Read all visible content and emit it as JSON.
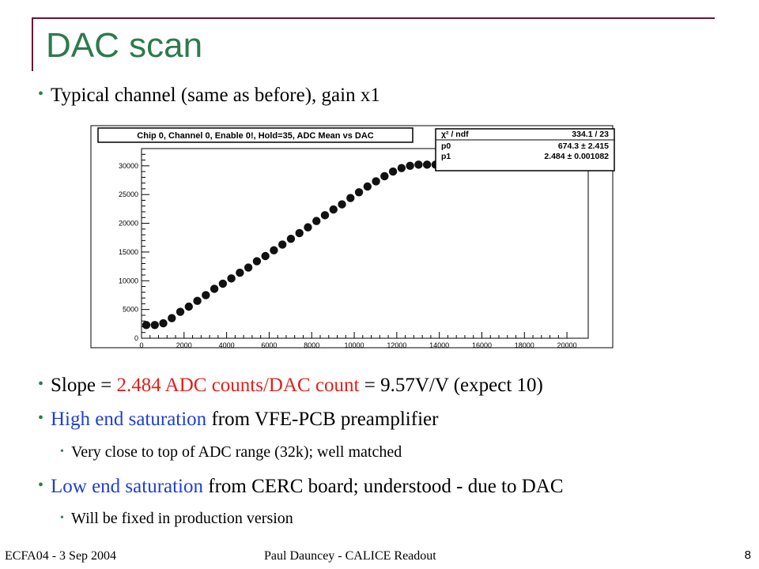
{
  "slide": {
    "title": "DAC scan",
    "bullet1": "Typical channel (same as before), gain x1",
    "slope": {
      "prefix": "Slope = ",
      "highlight": "2.484 ADC counts/DAC count",
      "suffix": " = 9.57V/V (expect 10)"
    },
    "high": {
      "highlight": "High end saturation",
      "rest": " from VFE-PCB preamplifier"
    },
    "high_sub": "Very close to top of ADC range (32k); well matched",
    "low": {
      "highlight": "Low end saturation",
      "rest": " from CERC board; understood - due to DAC"
    },
    "low_sub": "Will be fixed in production version",
    "footer_left": "ECFA04 - 3 Sep 2004",
    "footer_center": "Paul Dauncey - CALICE Readout",
    "page_number": "8",
    "colors": {
      "title": "#2e7a4a",
      "highlight_red": "#e0201b",
      "highlight_blue": "#1f3fd0",
      "frame": "#6b1530"
    }
  },
  "chart_data": {
    "type": "scatter",
    "title": "Chip 0, Channel 0, Enable 0!, Hold=35, ADC Mean vs DAC",
    "xlim": [
      0,
      21000
    ],
    "ylim": [
      0,
      33000
    ],
    "x_ticks": [
      0,
      2000,
      4000,
      6000,
      8000,
      10000,
      12000,
      14000,
      16000,
      18000,
      20000
    ],
    "y_ticks": [
      0,
      5000,
      10000,
      15000,
      20000,
      25000,
      30000
    ],
    "x_tick_labels": [
      "0",
      "2000",
      "4000",
      "6000",
      "8000",
      "10000",
      "12000",
      "14000",
      "16000",
      "18000",
      "20000"
    ],
    "y_tick_labels": [
      "0",
      "5000",
      "10000",
      "15000",
      "20000",
      "25000",
      "30000"
    ],
    "stats": [
      {
        "label": "χ² / ndf",
        "value": "334.1 / 23"
      },
      {
        "label": "p0",
        "value": "674.3 ± 2.415"
      },
      {
        "label": "p1",
        "value": "2.484 ± 0.001082"
      }
    ],
    "series": [
      {
        "x": [
          0,
          400,
          800,
          1200,
          1600,
          2000,
          2400,
          2800,
          3200,
          3600,
          4000,
          4400,
          4800,
          5200,
          5600,
          6000,
          6400,
          6800,
          7200,
          7600,
          8000,
          8400,
          8800,
          9200,
          9600,
          10000,
          10400,
          10800,
          11200,
          11600,
          12000,
          12400,
          12800,
          13200,
          13600,
          14000,
          14400,
          14800,
          15200,
          15600,
          16000,
          16400,
          16800,
          17200,
          17600,
          18000,
          18400,
          18800,
          19200,
          19600
        ],
        "y": [
          2300,
          2300,
          2600,
          3500,
          4600,
          5500,
          6500,
          7500,
          8600,
          9500,
          10400,
          11400,
          12300,
          13400,
          14300,
          15300,
          16300,
          17300,
          18300,
          19300,
          20400,
          21400,
          22400,
          23300,
          24400,
          25400,
          26400,
          27300,
          28200,
          29000,
          29600,
          30000,
          30200,
          30200,
          30200,
          30200,
          30200,
          30200,
          30200,
          30200,
          30200,
          30200,
          30200,
          30200,
          30200,
          30200,
          30200,
          30200,
          30200,
          30200
        ]
      }
    ]
  }
}
